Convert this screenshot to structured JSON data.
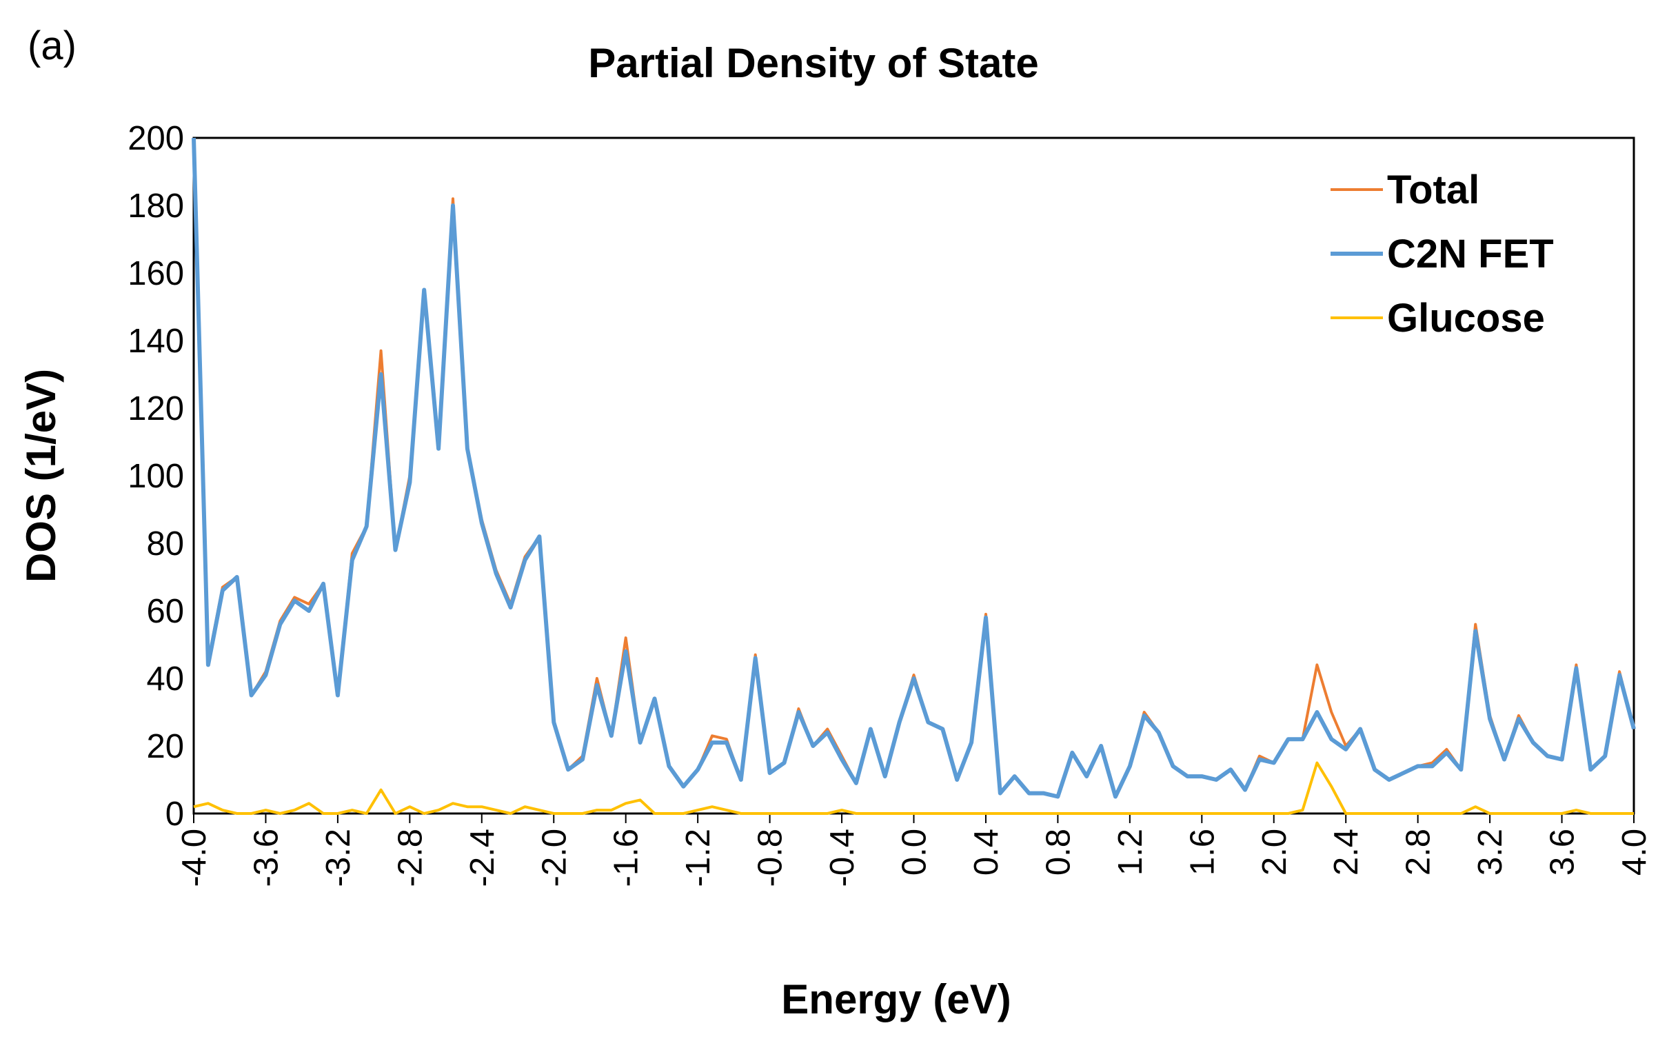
{
  "panel_label": "(a)",
  "chart_data": {
    "type": "line",
    "title": "Partial Density of State",
    "xlabel": "Energy (eV)",
    "ylabel": "DOS (1/eV)",
    "xlim": [
      -4.0,
      4.0
    ],
    "ylim": [
      0,
      200
    ],
    "x_ticks": [
      "-4.0",
      "-3.6",
      "-3.2",
      "-2.8",
      "-2.4",
      "-2.0",
      "-1.6",
      "-1.2",
      "-0.8",
      "-0.4",
      "0.0",
      "0.4",
      "0.8",
      "1.2",
      "1.6",
      "2.0",
      "2.4",
      "2.8",
      "3.2",
      "3.6",
      "4.0"
    ],
    "y_ticks": [
      "0",
      "20",
      "40",
      "60",
      "80",
      "100",
      "120",
      "140",
      "160",
      "180",
      "200"
    ],
    "legend_position": "top-right",
    "x_start": -4.0,
    "x_step": 0.08,
    "series": [
      {
        "name": "Total",
        "color": "#ED7D31",
        "values": [
          200,
          45,
          67,
          70,
          35,
          42,
          57,
          64,
          62,
          68,
          35,
          77,
          85,
          137,
          78,
          100,
          155,
          109,
          182,
          108,
          87,
          72,
          62,
          76,
          82,
          27,
          13,
          17,
          40,
          23,
          52,
          21,
          34,
          14,
          8,
          13,
          23,
          22,
          10,
          47,
          12,
          15,
          31,
          20,
          25,
          17,
          9,
          25,
          11,
          27,
          41,
          27,
          25,
          10,
          21,
          59,
          6,
          11,
          6,
          6,
          5,
          18,
          11,
          20,
          5,
          14,
          30,
          24,
          14,
          11,
          11,
          10,
          13,
          7,
          17,
          15,
          22,
          22,
          44,
          30,
          20,
          25,
          13,
          10,
          12,
          14,
          15,
          19,
          13,
          56,
          29,
          16,
          29,
          21,
          17,
          16,
          44,
          13,
          17,
          42,
          25
        ]
      },
      {
        "name": "C2N FET",
        "color": "#5B9BD5",
        "values": [
          200,
          44,
          66,
          70,
          35,
          41,
          56,
          63,
          60,
          68,
          35,
          75,
          85,
          130,
          78,
          98,
          155,
          108,
          180,
          108,
          86,
          71,
          61,
          75,
          82,
          27,
          13,
          16,
          38,
          23,
          48,
          21,
          34,
          14,
          8,
          13,
          21,
          21,
          10,
          46,
          12,
          15,
          30,
          20,
          24,
          16,
          9,
          25,
          11,
          27,
          40,
          27,
          25,
          10,
          21,
          58,
          6,
          11,
          6,
          6,
          5,
          18,
          11,
          20,
          5,
          14,
          29,
          24,
          14,
          11,
          11,
          10,
          13,
          7,
          16,
          15,
          22,
          22,
          30,
          22,
          19,
          25,
          13,
          10,
          12,
          14,
          14,
          18,
          13,
          54,
          28,
          16,
          28,
          21,
          17,
          16,
          43,
          13,
          17,
          41,
          25
        ]
      },
      {
        "name": "Glucose",
        "color": "#FFC000",
        "values": [
          2,
          3,
          1,
          0,
          0,
          1,
          0,
          1,
          3,
          0,
          0,
          1,
          0,
          7,
          0,
          2,
          0,
          1,
          3,
          2,
          2,
          1,
          0,
          2,
          1,
          0,
          0,
          0,
          1,
          1,
          3,
          4,
          0,
          0,
          0,
          1,
          2,
          1,
          0,
          0,
          0,
          0,
          0,
          0,
          0,
          1,
          0,
          0,
          0,
          0,
          0,
          0,
          0,
          0,
          0,
          0,
          0,
          0,
          0,
          0,
          0,
          0,
          0,
          0,
          0,
          0,
          0,
          0,
          0,
          0,
          0,
          0,
          0,
          0,
          0,
          0,
          0,
          1,
          15,
          8,
          0,
          0,
          0,
          0,
          0,
          0,
          0,
          0,
          0,
          2,
          0,
          0,
          0,
          0,
          0,
          0,
          1,
          0,
          0,
          0,
          0
        ]
      }
    ]
  }
}
